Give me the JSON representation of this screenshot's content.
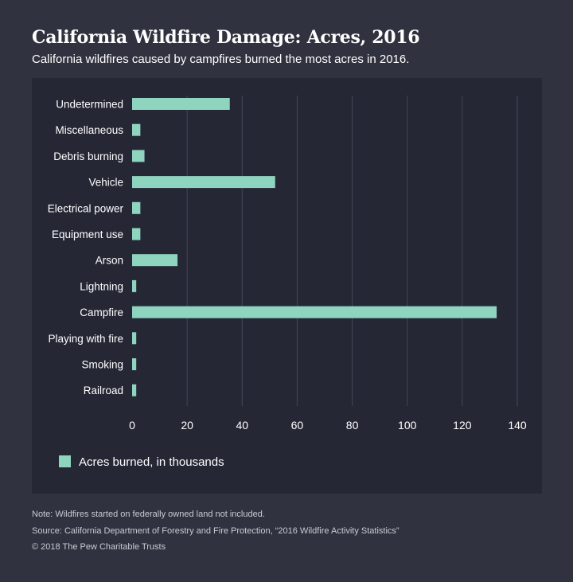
{
  "header": {
    "title": "California Wildfire Damage: Acres, 2016",
    "subtitle": "California wildfires caused by campfires burned the most acres in 2016."
  },
  "colors": {
    "bar": "#8fd4be",
    "grid": "#444757",
    "panel": "#252735",
    "background": "#30323f"
  },
  "chart_data": {
    "type": "bar",
    "orientation": "horizontal",
    "categories": [
      "Undetermined",
      "Miscellaneous",
      "Debris burning",
      "Vehicle",
      "Electrical power",
      "Equipment use",
      "Arson",
      "Lightning",
      "Campfire",
      "Playing with fire",
      "Smoking",
      "Railroad"
    ],
    "series": [
      {
        "name": "Acres burned, in thousands",
        "values": [
          35.5,
          3,
          4.5,
          52,
          3,
          3,
          16.5,
          1.5,
          132.5,
          1.5,
          1.5,
          1.5
        ]
      }
    ],
    "xlim": [
      0,
      140
    ],
    "xticks": [
      0,
      20,
      40,
      60,
      80,
      100,
      120,
      140
    ],
    "grid": "vertical",
    "legend": "bottom-left"
  },
  "footer": {
    "note": "Note: Wildfires started on federally owned land not included.",
    "source": "Source: California Department of Forestry and Fire Protection, “2016 Wildfire Activity Statistics”",
    "copyright": "© 2018 The Pew Charitable Trusts"
  }
}
